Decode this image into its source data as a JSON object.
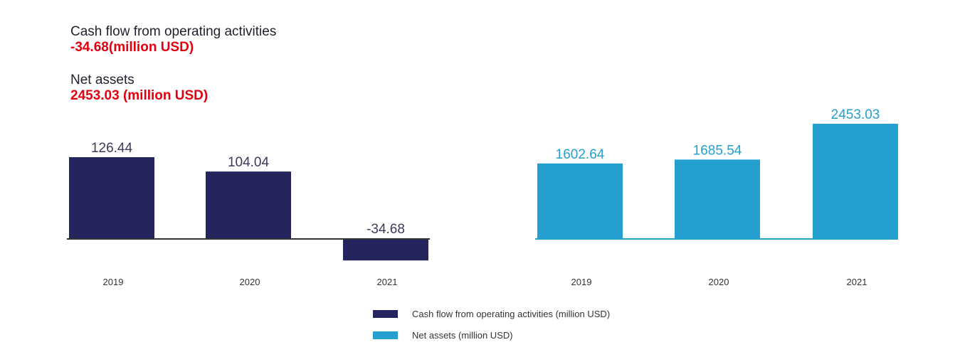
{
  "summary": {
    "cash_flow": {
      "label": "Cash flow from operating activities",
      "value": "-34.68(million USD)"
    },
    "net_assets": {
      "label": "Net assets",
      "value": "2453.03 (million USD)"
    }
  },
  "colors": {
    "cash_flow": "#24255c",
    "net_assets": "#23a0cf"
  },
  "legend": [
    {
      "label": "Cash flow from operating activities (million USD)",
      "color": "#24255c"
    },
    {
      "label": "Net assets (million USD)",
      "color": "#23a0cf"
    }
  ],
  "chart_data": [
    {
      "type": "bar",
      "categories": [
        "2019",
        "2020",
        "2021"
      ],
      "series": [
        {
          "name": "Cash flow from operating activities (million USD)",
          "values": [
            126.44,
            104.04,
            -34.68
          ]
        }
      ],
      "value_labels": [
        "126.44",
        "104.04",
        "-34.68"
      ],
      "ylim": [
        -34.68,
        126.44
      ],
      "grid": false
    },
    {
      "type": "bar",
      "categories": [
        "2019",
        "2020",
        "2021"
      ],
      "series": [
        {
          "name": "Net assets (million USD)",
          "values": [
            1602.64,
            1685.54,
            2453.03
          ]
        }
      ],
      "value_labels": [
        "1602.64",
        "1685.54",
        "2453.03"
      ],
      "ylim": [
        0,
        2453.03
      ],
      "grid": false
    }
  ]
}
